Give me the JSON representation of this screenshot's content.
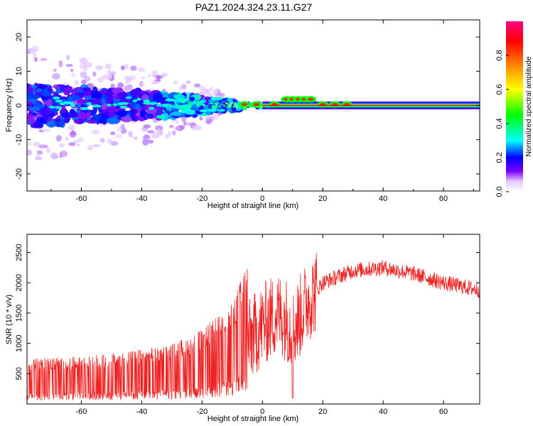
{
  "title": "PAZ1.2024.324.23.11.G27",
  "chart_data": [
    {
      "type": "heatmap",
      "xlabel": "Height of straight line (km)",
      "ylabel": "Frequency (Hz)",
      "xlim": [
        -78,
        72
      ],
      "ylim": [
        -25,
        25
      ],
      "x_ticks": [
        -60,
        -40,
        -20,
        0,
        20,
        40,
        60
      ],
      "y_ticks": [
        -20,
        -10,
        0,
        10,
        20
      ],
      "colorbar": {
        "label": "Normalized spectral amplitude",
        "range": [
          0,
          1
        ],
        "ticks": [
          "0.0",
          "0.2",
          "0.4",
          "0.6",
          "0.8"
        ]
      },
      "band_spread_hz": [
        {
          "x": -75,
          "spread": 6
        },
        {
          "x": -60,
          "spread": 5
        },
        {
          "x": -40,
          "spread": 4
        },
        {
          "x": -25,
          "spread": 3
        },
        {
          "x": -15,
          "spread": 1.5
        },
        {
          "x": 0,
          "spread": 0.6
        },
        {
          "x": 8,
          "spread": 1.2
        },
        {
          "x": 20,
          "spread": 0.6
        },
        {
          "x": 40,
          "spread": 0.5
        },
        {
          "x": 70,
          "spread": 0.4
        }
      ]
    },
    {
      "type": "line",
      "xlabel": "Height of straight line (km)",
      "ylabel": "SNR (10 * v/v)",
      "xlim": [
        -78,
        72
      ],
      "ylim": [
        0,
        2800
      ],
      "x_ticks": [
        -60,
        -40,
        -20,
        0,
        20,
        40,
        60
      ],
      "y_ticks": [
        500,
        1000,
        1500,
        2000,
        2500
      ],
      "color": "#ee2222",
      "envelope": {
        "x": [
          -78,
          -60,
          -40,
          -30,
          -20,
          -10,
          -5,
          0,
          5,
          8,
          10,
          15,
          20,
          30,
          40,
          50,
          60,
          72
        ],
        "mean": [
          320,
          330,
          380,
          420,
          520,
          700,
          1000,
          1300,
          1500,
          1400,
          1200,
          1700,
          2000,
          2200,
          2250,
          2150,
          2000,
          1880
        ]
      }
    }
  ]
}
